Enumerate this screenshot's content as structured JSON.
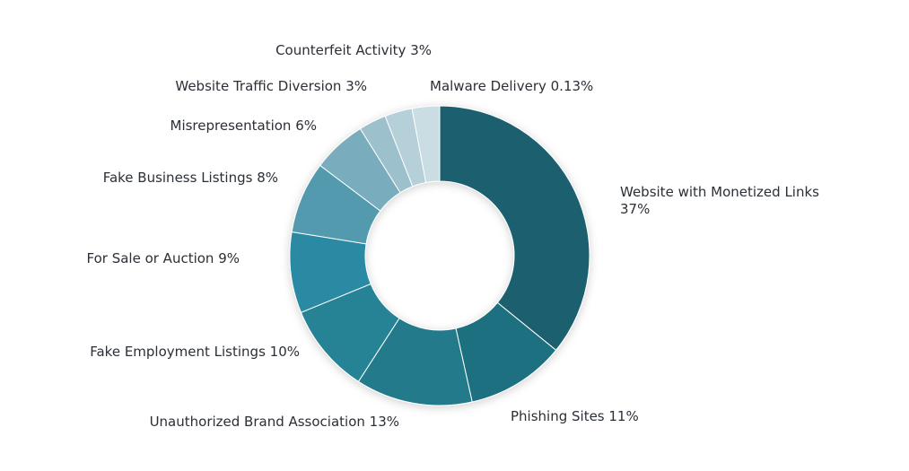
{
  "chart_data": {
    "type": "pie",
    "style": "donut",
    "categories": [
      "Website with Monetized Links",
      "Phishing Sites",
      "Unauthorized Brand Association",
      "Fake Employment Listings",
      "For Sale or Auction",
      "Fake Business Listings",
      "Misrepresentation",
      "Website Traffic Diversion",
      "Counterfeit Activity",
      "Malware Delivery"
    ],
    "values": [
      37,
      11,
      13,
      10,
      9,
      8,
      6,
      3,
      3,
      0.13
    ],
    "value_labels": [
      "37%",
      "11%",
      "13%",
      "10%",
      "9%",
      "8%",
      "6%",
      "3%",
      "3%",
      "0.13%"
    ],
    "colors": [
      "#1b6170",
      "#1f6f80",
      "#237a8b",
      "#268396",
      "#2a8aa3",
      "#529aae",
      "#79adbe",
      "#9cc0cc",
      "#b6d0d9",
      "#c9dde3"
    ],
    "legend": "none",
    "labels_position": "outside"
  }
}
